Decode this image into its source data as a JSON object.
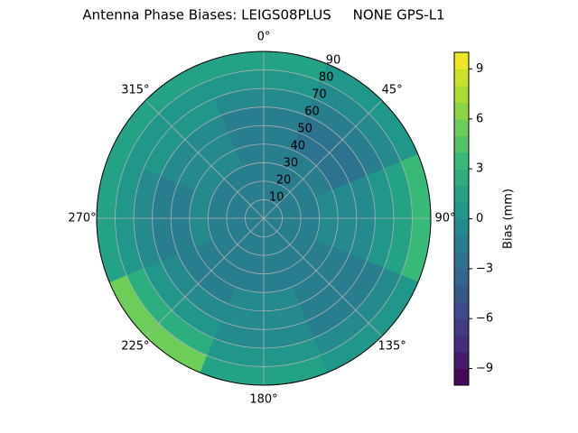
{
  "chart_data": {
    "type": "polar_contour",
    "title": "Antenna Phase Biases: LEIGS08PLUS     NONE GPS-L1",
    "zenith": [
      0,
      10,
      20,
      30,
      40,
      50,
      60,
      70,
      80,
      90
    ],
    "azimuth": [
      0,
      45,
      90,
      135,
      180,
      225,
      270,
      315
    ],
    "z": [
      [
        -2,
        -2,
        -2,
        -2,
        -2,
        -2,
        -2,
        -2
      ],
      [
        -2,
        -2,
        -2,
        -2,
        -2,
        -2,
        -2,
        -2
      ],
      [
        -2,
        -2,
        -2,
        -2,
        -2,
        -2,
        -2,
        -2
      ],
      [
        -2,
        -2,
        -1,
        -2,
        -2,
        -2,
        -1,
        -1
      ],
      [
        -2,
        -3,
        -1,
        -2,
        -1,
        -2,
        -2,
        -1
      ],
      [
        -2,
        -3,
        -1,
        -2,
        -1,
        -1,
        -2,
        -1
      ],
      [
        -1,
        -2,
        0,
        -2,
        -1,
        0,
        -1,
        0
      ],
      [
        0,
        -1,
        1,
        -1,
        0,
        2,
        0,
        0
      ],
      [
        1,
        0,
        3,
        0,
        1,
        5,
        1,
        1
      ]
    ],
    "rlim": [
      0,
      90
    ],
    "rticks": [
      10,
      20,
      30,
      40,
      50,
      60,
      70,
      80,
      90
    ],
    "thetaticks": [
      {
        "value": 0,
        "label": "0°"
      },
      {
        "value": 45,
        "label": "45°"
      },
      {
        "value": 90,
        "label": "90°"
      },
      {
        "value": 135,
        "label": "135°"
      },
      {
        "value": 180,
        "label": "180°"
      },
      {
        "value": 225,
        "label": "225°"
      },
      {
        "value": 270,
        "label": "270°"
      },
      {
        "value": 315,
        "label": "315°"
      }
    ],
    "clim": [
      -10,
      10
    ],
    "cticks": [
      {
        "value": -9,
        "label": "−9"
      },
      {
        "value": -6,
        "label": "−6"
      },
      {
        "value": -3,
        "label": "−3"
      },
      0,
      3,
      6,
      9
    ],
    "colorbar_label": "Bias (mm)",
    "colormap": "viridis",
    "grid": true
  }
}
